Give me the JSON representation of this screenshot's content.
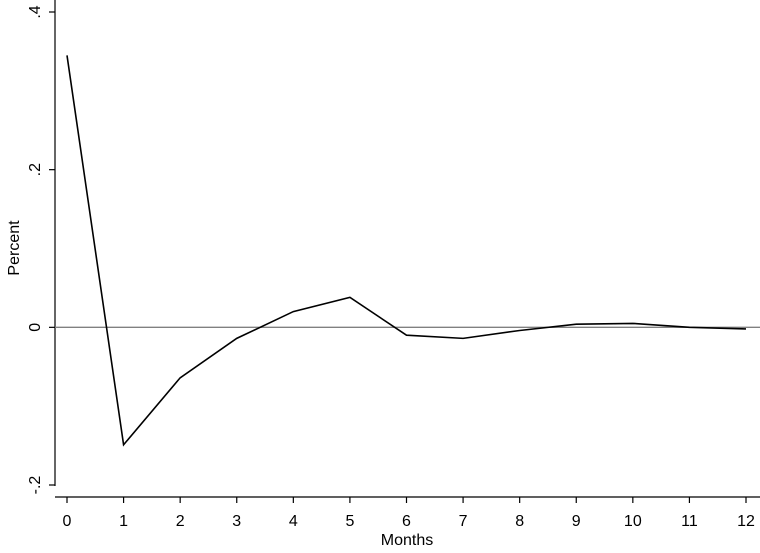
{
  "chart_data": {
    "type": "line",
    "title": "",
    "xlabel": "Months",
    "ylabel": "Percent",
    "x": [
      0,
      1,
      2,
      3,
      4,
      5,
      6,
      7,
      8,
      9,
      10,
      11,
      12
    ],
    "series": [
      {
        "values": [
          0.345,
          -0.149,
          -0.064,
          -0.014,
          0.02,
          0.038,
          -0.01,
          -0.014,
          -0.004,
          0.004,
          0.005,
          0.0,
          -0.002
        ]
      }
    ],
    "xlim": [
      0,
      12
    ],
    "ylim": [
      -0.2,
      0.4
    ],
    "xticks": [
      0,
      1,
      2,
      3,
      4,
      5,
      6,
      7,
      8,
      9,
      10,
      11,
      12
    ],
    "xtick_labels": [
      "0",
      "1",
      "2",
      "3",
      "4",
      "5",
      "6",
      "7",
      "8",
      "9",
      "10",
      "11",
      "12"
    ],
    "yticks": [
      -0.2,
      0,
      0.2,
      0.4
    ],
    "ytick_labels": [
      "-.2",
      "0",
      ".2",
      ".4"
    ],
    "reference_line_y": 0,
    "grid": false,
    "legend": "none",
    "colors": {
      "series": "#000000",
      "reference": "#808080",
      "axis": "#000000"
    }
  }
}
